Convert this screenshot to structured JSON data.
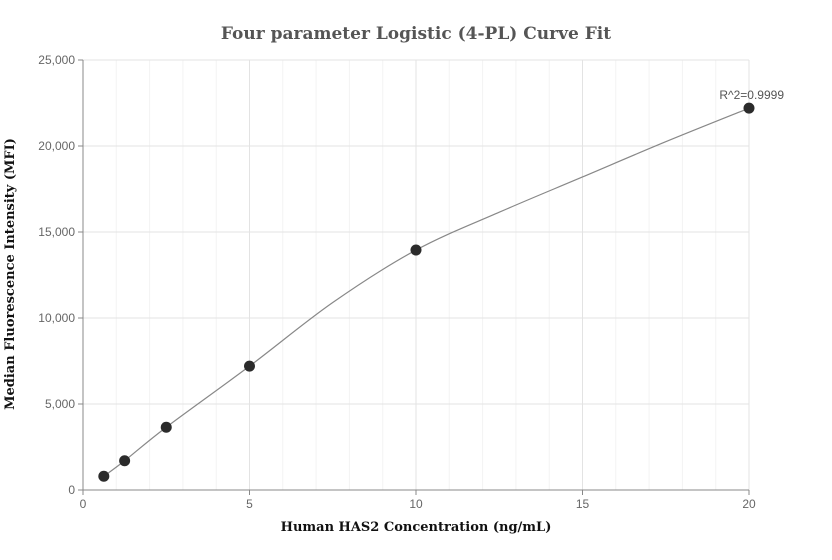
{
  "chart_data": {
    "type": "scatter",
    "title": "Four parameter Logistic (4-PL) Curve Fit",
    "xlabel": "Human HAS2 Concentration (ng/mL)",
    "ylabel": "Median Fluorescence Intensity (MFI)",
    "xlim": [
      0,
      20
    ],
    "ylim": [
      0,
      25000
    ],
    "x_ticks": [
      0,
      5,
      10,
      15,
      20
    ],
    "y_ticks": [
      0,
      5000,
      10000,
      15000,
      20000,
      25000
    ],
    "x_tick_labels": [
      "0",
      "5",
      "10",
      "15",
      "20"
    ],
    "y_tick_labels": [
      "0",
      "5,000",
      "10,000",
      "15,000",
      "20,000",
      "25,000"
    ],
    "grid": true,
    "series": [
      {
        "values": [
          {
            "x": 0.625,
            "y": 800
          },
          {
            "x": 1.25,
            "y": 1700
          },
          {
            "x": 2.5,
            "y": 3650
          },
          {
            "x": 5,
            "y": 7200
          },
          {
            "x": 10,
            "y": 13950
          },
          {
            "x": 20,
            "y": 22200
          }
        ],
        "fit_curve": [
          {
            "x": 0.625,
            "y": 800
          },
          {
            "x": 1.25,
            "y": 1700
          },
          {
            "x": 2.5,
            "y": 3650
          },
          {
            "x": 5,
            "y": 7200
          },
          {
            "x": 7.5,
            "y": 10900
          },
          {
            "x": 10,
            "y": 13950
          },
          {
            "x": 12.5,
            "y": 16150
          },
          {
            "x": 15,
            "y": 18200
          },
          {
            "x": 17.5,
            "y": 20250
          },
          {
            "x": 20,
            "y": 22200
          }
        ]
      }
    ],
    "annotations": [
      {
        "text": "R^2=0.9999",
        "x": 20,
        "y": 22200
      }
    ],
    "colors": {
      "point": "#2b2b2b",
      "curve": "#888888"
    }
  }
}
